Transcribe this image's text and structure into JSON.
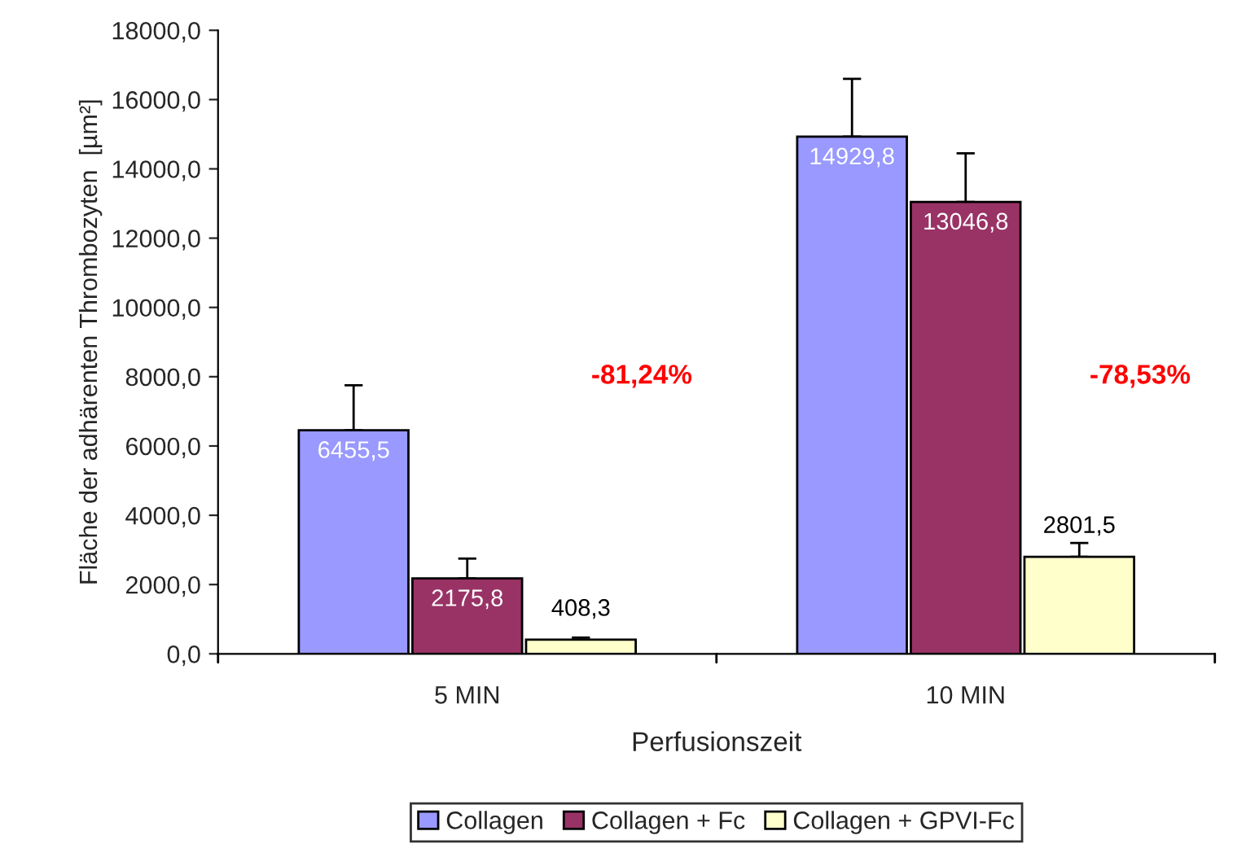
{
  "chart_data": {
    "type": "bar",
    "xlabel": "Perfusionszeit",
    "ylabel": "Fläche der adhärenten Thrombozyten  [µm²]",
    "categories": [
      "5 MIN",
      "10 MIN"
    ],
    "series": [
      {
        "name": "Collagen",
        "color": "#9999ff",
        "values": [
          6455.5,
          14929.8
        ],
        "value_labels": [
          "6455,5",
          "14929,8"
        ],
        "errors": [
          [
            6455.5,
            7750
          ],
          [
            14929.8,
            16600
          ]
        ]
      },
      {
        "name": "Collagen + Fc",
        "color": "#993366",
        "values": [
          2175.8,
          13046.8
        ],
        "value_labels": [
          "2175,8",
          "13046,8"
        ],
        "errors": [
          [
            2175.8,
            2750
          ],
          [
            13046.8,
            14450
          ]
        ]
      },
      {
        "name": "Collagen + GPVI-Fc",
        "color": "#ffffcc",
        "values": [
          408.3,
          2801.5
        ],
        "value_labels": [
          "408,3",
          "2801,5"
        ],
        "errors": [
          [
            408.3,
            470
          ],
          [
            2801.5,
            3200
          ]
        ]
      }
    ],
    "ylim": [
      0,
      18000
    ],
    "yticks": [
      {
        "value": 0,
        "label": "0,0"
      },
      {
        "value": 2000,
        "label": "2000,0"
      },
      {
        "value": 4000,
        "label": "4000,0"
      },
      {
        "value": 6000,
        "label": "6000,0"
      },
      {
        "value": 8000,
        "label": "8000,0"
      },
      {
        "value": 10000,
        "label": "10000,0"
      },
      {
        "value": 12000,
        "label": "12000,0"
      },
      {
        "value": 14000,
        "label": "14000,0"
      },
      {
        "value": 16000,
        "label": "16000,0"
      },
      {
        "value": 18000,
        "label": "18000,0"
      }
    ],
    "annotations": [
      "-81,24%",
      "-78,53%"
    ],
    "grid": false,
    "legend": "bottom"
  }
}
